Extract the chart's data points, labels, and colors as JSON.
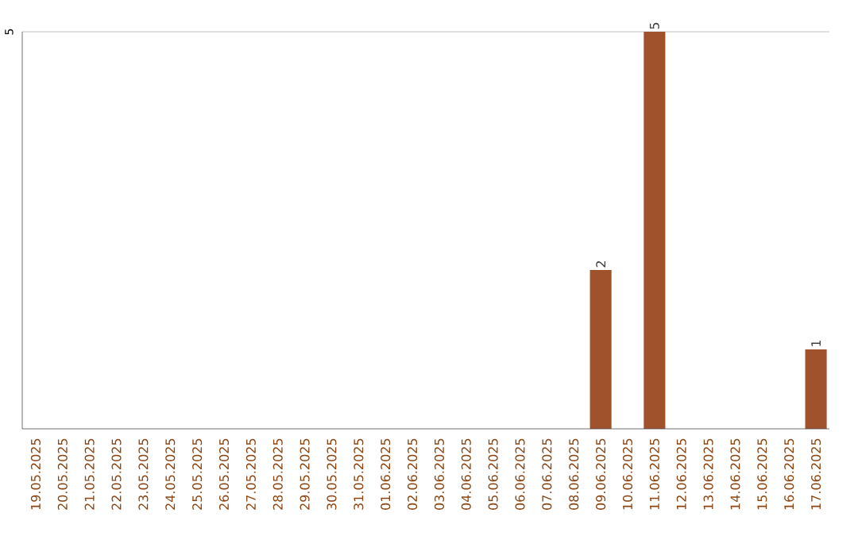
{
  "chart_data": {
    "type": "bar",
    "categories": [
      "19.05.2025",
      "20.05.2025",
      "21.05.2025",
      "22.05.2025",
      "23.05.2025",
      "24.05.2025",
      "25.05.2025",
      "26.05.2025",
      "27.05.2025",
      "28.05.2025",
      "29.05.2025",
      "30.05.2025",
      "31.05.2025",
      "01.06.2025",
      "02.06.2025",
      "03.06.2025",
      "04.06.2025",
      "05.06.2025",
      "06.06.2025",
      "07.06.2025",
      "08.06.2025",
      "09.06.2025",
      "10.06.2025",
      "11.06.2025",
      "12.06.2025",
      "13.06.2025",
      "14.06.2025",
      "15.06.2025",
      "16.06.2025",
      "17.06.2025"
    ],
    "values": [
      null,
      null,
      null,
      null,
      null,
      null,
      null,
      null,
      null,
      null,
      null,
      null,
      null,
      null,
      null,
      null,
      null,
      null,
      null,
      null,
      null,
      2,
      null,
      5,
      null,
      null,
      null,
      null,
      null,
      1
    ],
    "data_labels": true,
    "color": "#a0522d",
    "ylim": [
      0,
      5
    ],
    "yticks": [
      5
    ]
  }
}
